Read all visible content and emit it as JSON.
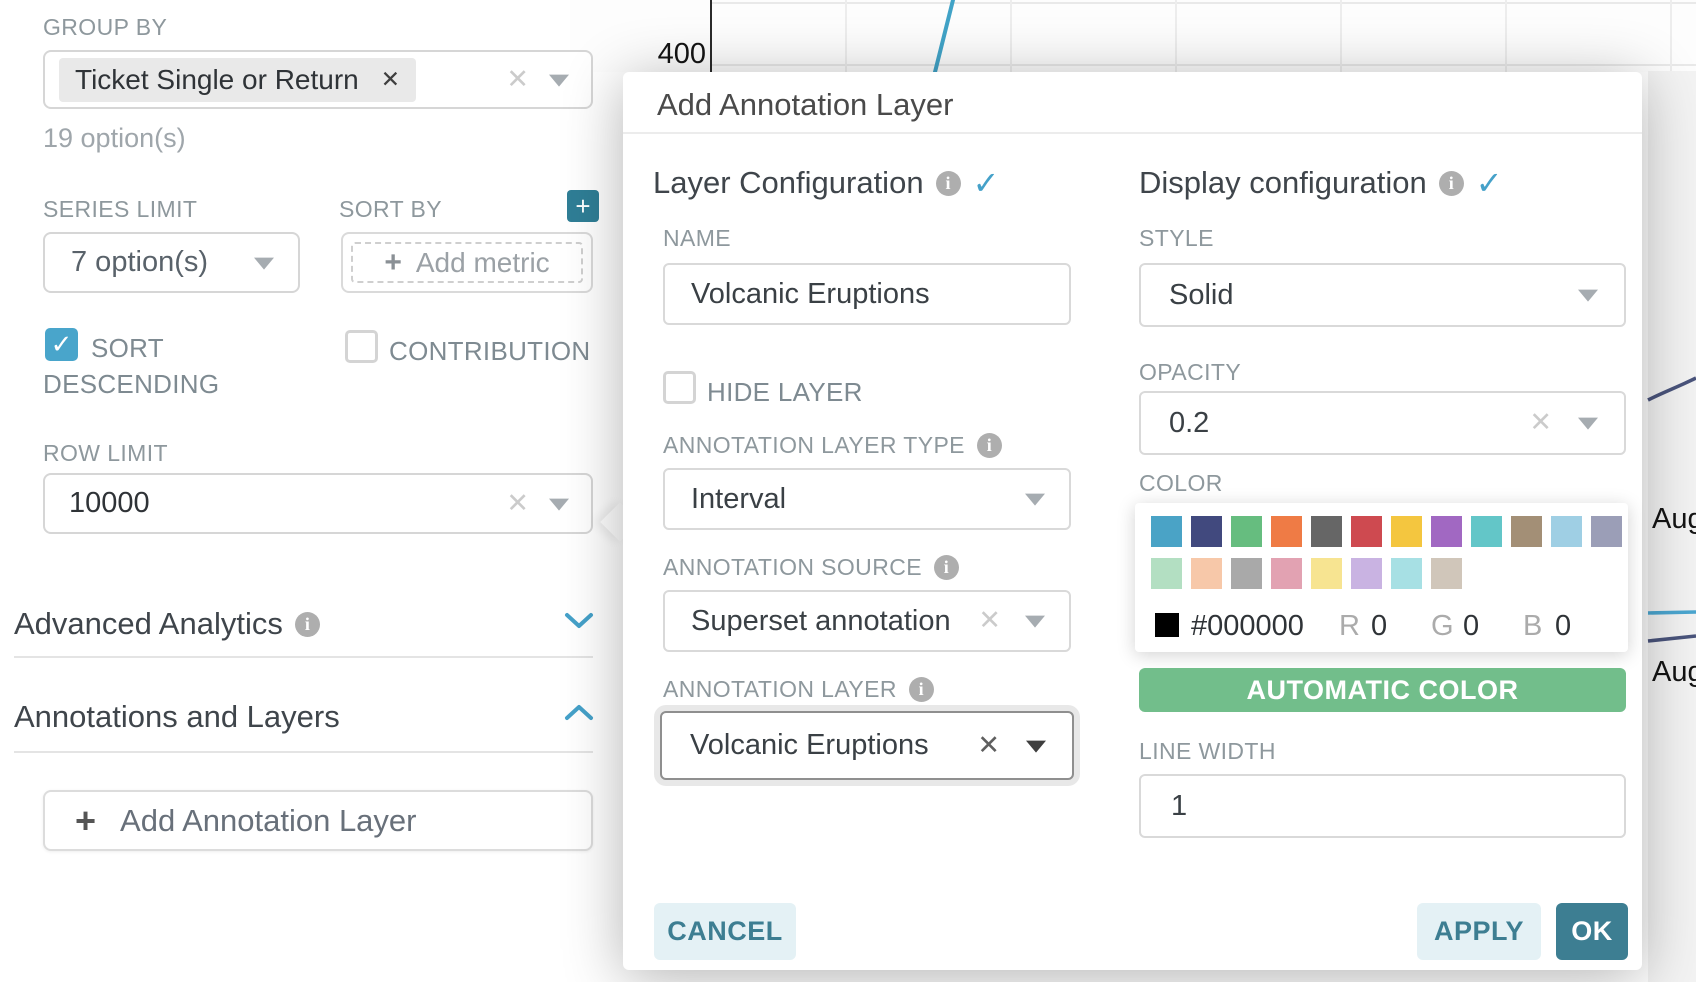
{
  "background": {
    "y_tick": "400",
    "aug_top": "Aug",
    "aug_bottom": "Aug",
    "line_blue": "#41a3c7",
    "line_navy": "#4a547c"
  },
  "left_panel": {
    "group_by": {
      "label": "GROUP BY",
      "tag": "Ticket Single or Return",
      "tag_remove": "✕",
      "helper": "19 option(s)"
    },
    "series_limit": {
      "label": "SERIES LIMIT",
      "value": "7 option(s)"
    },
    "sort_by": {
      "label": "SORT BY",
      "add_metric": "Add metric",
      "plus": "+"
    },
    "sort_descending": {
      "label_line1": "SORT",
      "label_line2": "DESCENDING",
      "checked": true,
      "check": "✓"
    },
    "contribution": {
      "label": "CONTRIBUTION",
      "checked": false
    },
    "row_limit": {
      "label": "ROW LIMIT",
      "value": "10000"
    },
    "advanced_analytics": {
      "label": "Advanced Analytics"
    },
    "annotations_and_layers": {
      "label": "Annotations and Layers"
    },
    "add_annotation_button": {
      "plus": "+",
      "label": "Add Annotation Layer"
    }
  },
  "modal": {
    "title": "Add Annotation Layer",
    "layer_configuration": {
      "header": "Layer Configuration",
      "info": "i",
      "check": "✓",
      "name": {
        "label": "NAME",
        "value": "Volcanic Eruptions"
      },
      "hide_layer": {
        "label": "HIDE LAYER",
        "checked": false
      },
      "layer_type": {
        "label": "ANNOTATION LAYER TYPE",
        "value": "Interval"
      },
      "source": {
        "label": "ANNOTATION SOURCE",
        "value": "Superset annotation"
      },
      "layer": {
        "label": "ANNOTATION LAYER",
        "value": "Volcanic Eruptions"
      }
    },
    "display_configuration": {
      "header": "Display configuration",
      "info": "i",
      "check": "✓",
      "style": {
        "label": "STYLE",
        "value": "Solid"
      },
      "opacity": {
        "label": "OPACITY",
        "value": "0.2"
      },
      "color": {
        "label": "COLOR",
        "palette_row1": [
          "#4aa3c6",
          "#41497e",
          "#66bd7f",
          "#ef7b45",
          "#666666",
          "#ce4a50",
          "#f4c63f",
          "#a168c2",
          "#63c6c8",
          "#a38f76",
          "#9fcfe4",
          "#9b9eb7"
        ],
        "palette_row2": [
          "#b3dfc2",
          "#f7c8a9",
          "#a9a9a9",
          "#e2a2b2",
          "#f7e491",
          "#c9b3e2",
          "#a7e0e4",
          "#d0c6ba"
        ],
        "current": {
          "hex": "#000000",
          "r_label": "R",
          "r": "0",
          "g_label": "G",
          "g": "0",
          "b_label": "B",
          "b": "0"
        }
      },
      "automatic_color_button": "AUTOMATIC COLOR",
      "line_width": {
        "label": "LINE WIDTH",
        "value": "1"
      }
    },
    "footer": {
      "cancel": "CANCEL",
      "apply": "APPLY",
      "ok": "OK"
    }
  },
  "colors": {
    "accent_blue": "#49a5cb",
    "teal_button": "#3d7e92",
    "teal_button_light_bg": "#e4f1f5",
    "plus_button_teal": "#2f7e96",
    "automatic_color_green": "#72be8b"
  }
}
